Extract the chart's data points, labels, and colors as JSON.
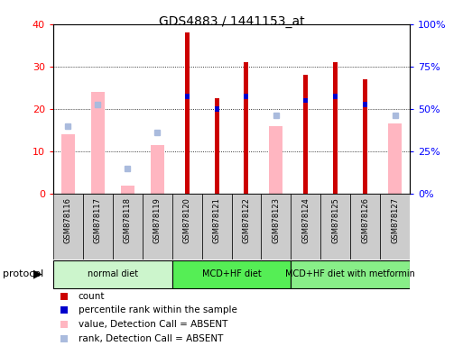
{
  "title": "GDS4883 / 1441153_at",
  "samples": [
    "GSM878116",
    "GSM878117",
    "GSM878118",
    "GSM878119",
    "GSM878120",
    "GSM878121",
    "GSM878122",
    "GSM878123",
    "GSM878124",
    "GSM878125",
    "GSM878126",
    "GSM878127"
  ],
  "count_values": [
    0,
    0,
    0,
    0,
    38,
    22.5,
    31,
    0,
    28,
    31,
    27,
    0
  ],
  "percentile_values": [
    0,
    0,
    0,
    0,
    23,
    20,
    23,
    0,
    22,
    23,
    21,
    0
  ],
  "value_absent": [
    14,
    24,
    2,
    11.5,
    0,
    0,
    0,
    16,
    0,
    0,
    0,
    16.5
  ],
  "rank_absent": [
    16,
    21,
    6,
    14.5,
    0,
    0,
    0,
    18.5,
    0,
    0,
    0,
    18.5
  ],
  "proto_groups": [
    {
      "label": "normal diet",
      "start": 0,
      "end": 4,
      "color": "#ccf5cc"
    },
    {
      "label": "MCD+HF diet",
      "start": 4,
      "end": 8,
      "color": "#55ee55"
    },
    {
      "label": "MCD+HF diet with metformin",
      "start": 8,
      "end": 12,
      "color": "#88ee88"
    }
  ],
  "count_color": "#CC0000",
  "percentile_color": "#0000CC",
  "value_absent_color": "#FFB6C1",
  "rank_absent_color": "#aabbdd",
  "ylim_left": [
    0,
    40
  ],
  "ylim_right": [
    0,
    100
  ],
  "yticks_left": [
    0,
    10,
    20,
    30,
    40
  ],
  "yticks_right": [
    0,
    25,
    50,
    75,
    100
  ],
  "figsize": [
    5.13,
    3.84
  ],
  "dpi": 100
}
